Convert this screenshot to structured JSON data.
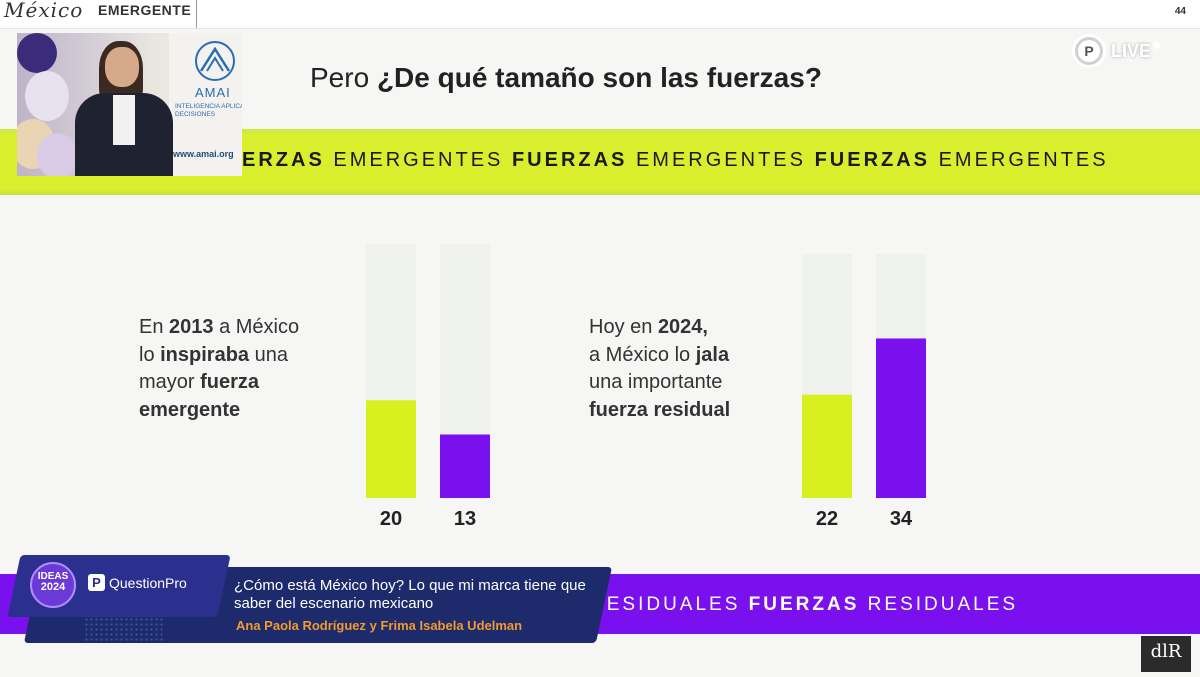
{
  "header": {
    "logo_script": "México",
    "logo_bold": "EMERGENTE",
    "slide_number": "44"
  },
  "live_badge": {
    "icon_letter": "P",
    "label": "LIVE"
  },
  "slide": {
    "title_lead": "Pero ",
    "title_emph": "¿De qué tamaño son las fuerzas?"
  },
  "speaker_video": {
    "banner_name": "AMAI",
    "banner_sub": "INTELIGENCIA APLICADA A DECISIONES",
    "banner_url": "www.amai.org"
  },
  "band_top": {
    "segments": [
      {
        "bold": "ERZAS",
        "regular": "EMERGENTES"
      },
      {
        "bold": "FUERZAS",
        "regular": "EMERGENTES"
      },
      {
        "bold": "FUERZAS",
        "regular": "EMERGENTES"
      }
    ]
  },
  "left_text": {
    "l1a": "En ",
    "l1b": "2013",
    "l1c": " a México",
    "l2a": "lo ",
    "l2b": "inspiraba",
    "l2c": " una",
    "l3a": "mayor ",
    "l3b": "fuerza",
    "l4": "emergente"
  },
  "right_text": {
    "l1a": "Hoy en ",
    "l1b": "2024,",
    "l2a": "a México lo ",
    "l2b": "jala",
    "l3": "una importante",
    "l4": "fuerza residual"
  },
  "colors": {
    "emergent": "#d7f01e",
    "residual": "#7a10ee",
    "track": "#eef1ec"
  },
  "chart_data": [
    {
      "type": "bar",
      "categories": [
        "",
        ""
      ],
      "values": [
        20,
        13
      ],
      "ylim": [
        0,
        52
      ],
      "labels": [
        "20",
        "13"
      ]
    },
    {
      "type": "bar",
      "categories": [
        "",
        ""
      ],
      "values": [
        22,
        34
      ],
      "ylim": [
        0,
        52
      ],
      "labels": [
        "22",
        "34"
      ]
    }
  ],
  "band_bottom": {
    "text_regular_1": "RESIDUALES",
    "text_bold": "FUERZAS",
    "text_regular_2": "RESIDUALES"
  },
  "lower_third": {
    "badge_top": "IDEAS",
    "badge_year": "2024",
    "brand_icon": "P",
    "brand": "QuestionPro",
    "title": "¿Cómo está México hoy? Lo que mi marca tiene que saber del escenario mexicano",
    "names": "Ana Paola Rodríguez y Frima Isabela Udelman"
  },
  "corner_logo": "dlR"
}
